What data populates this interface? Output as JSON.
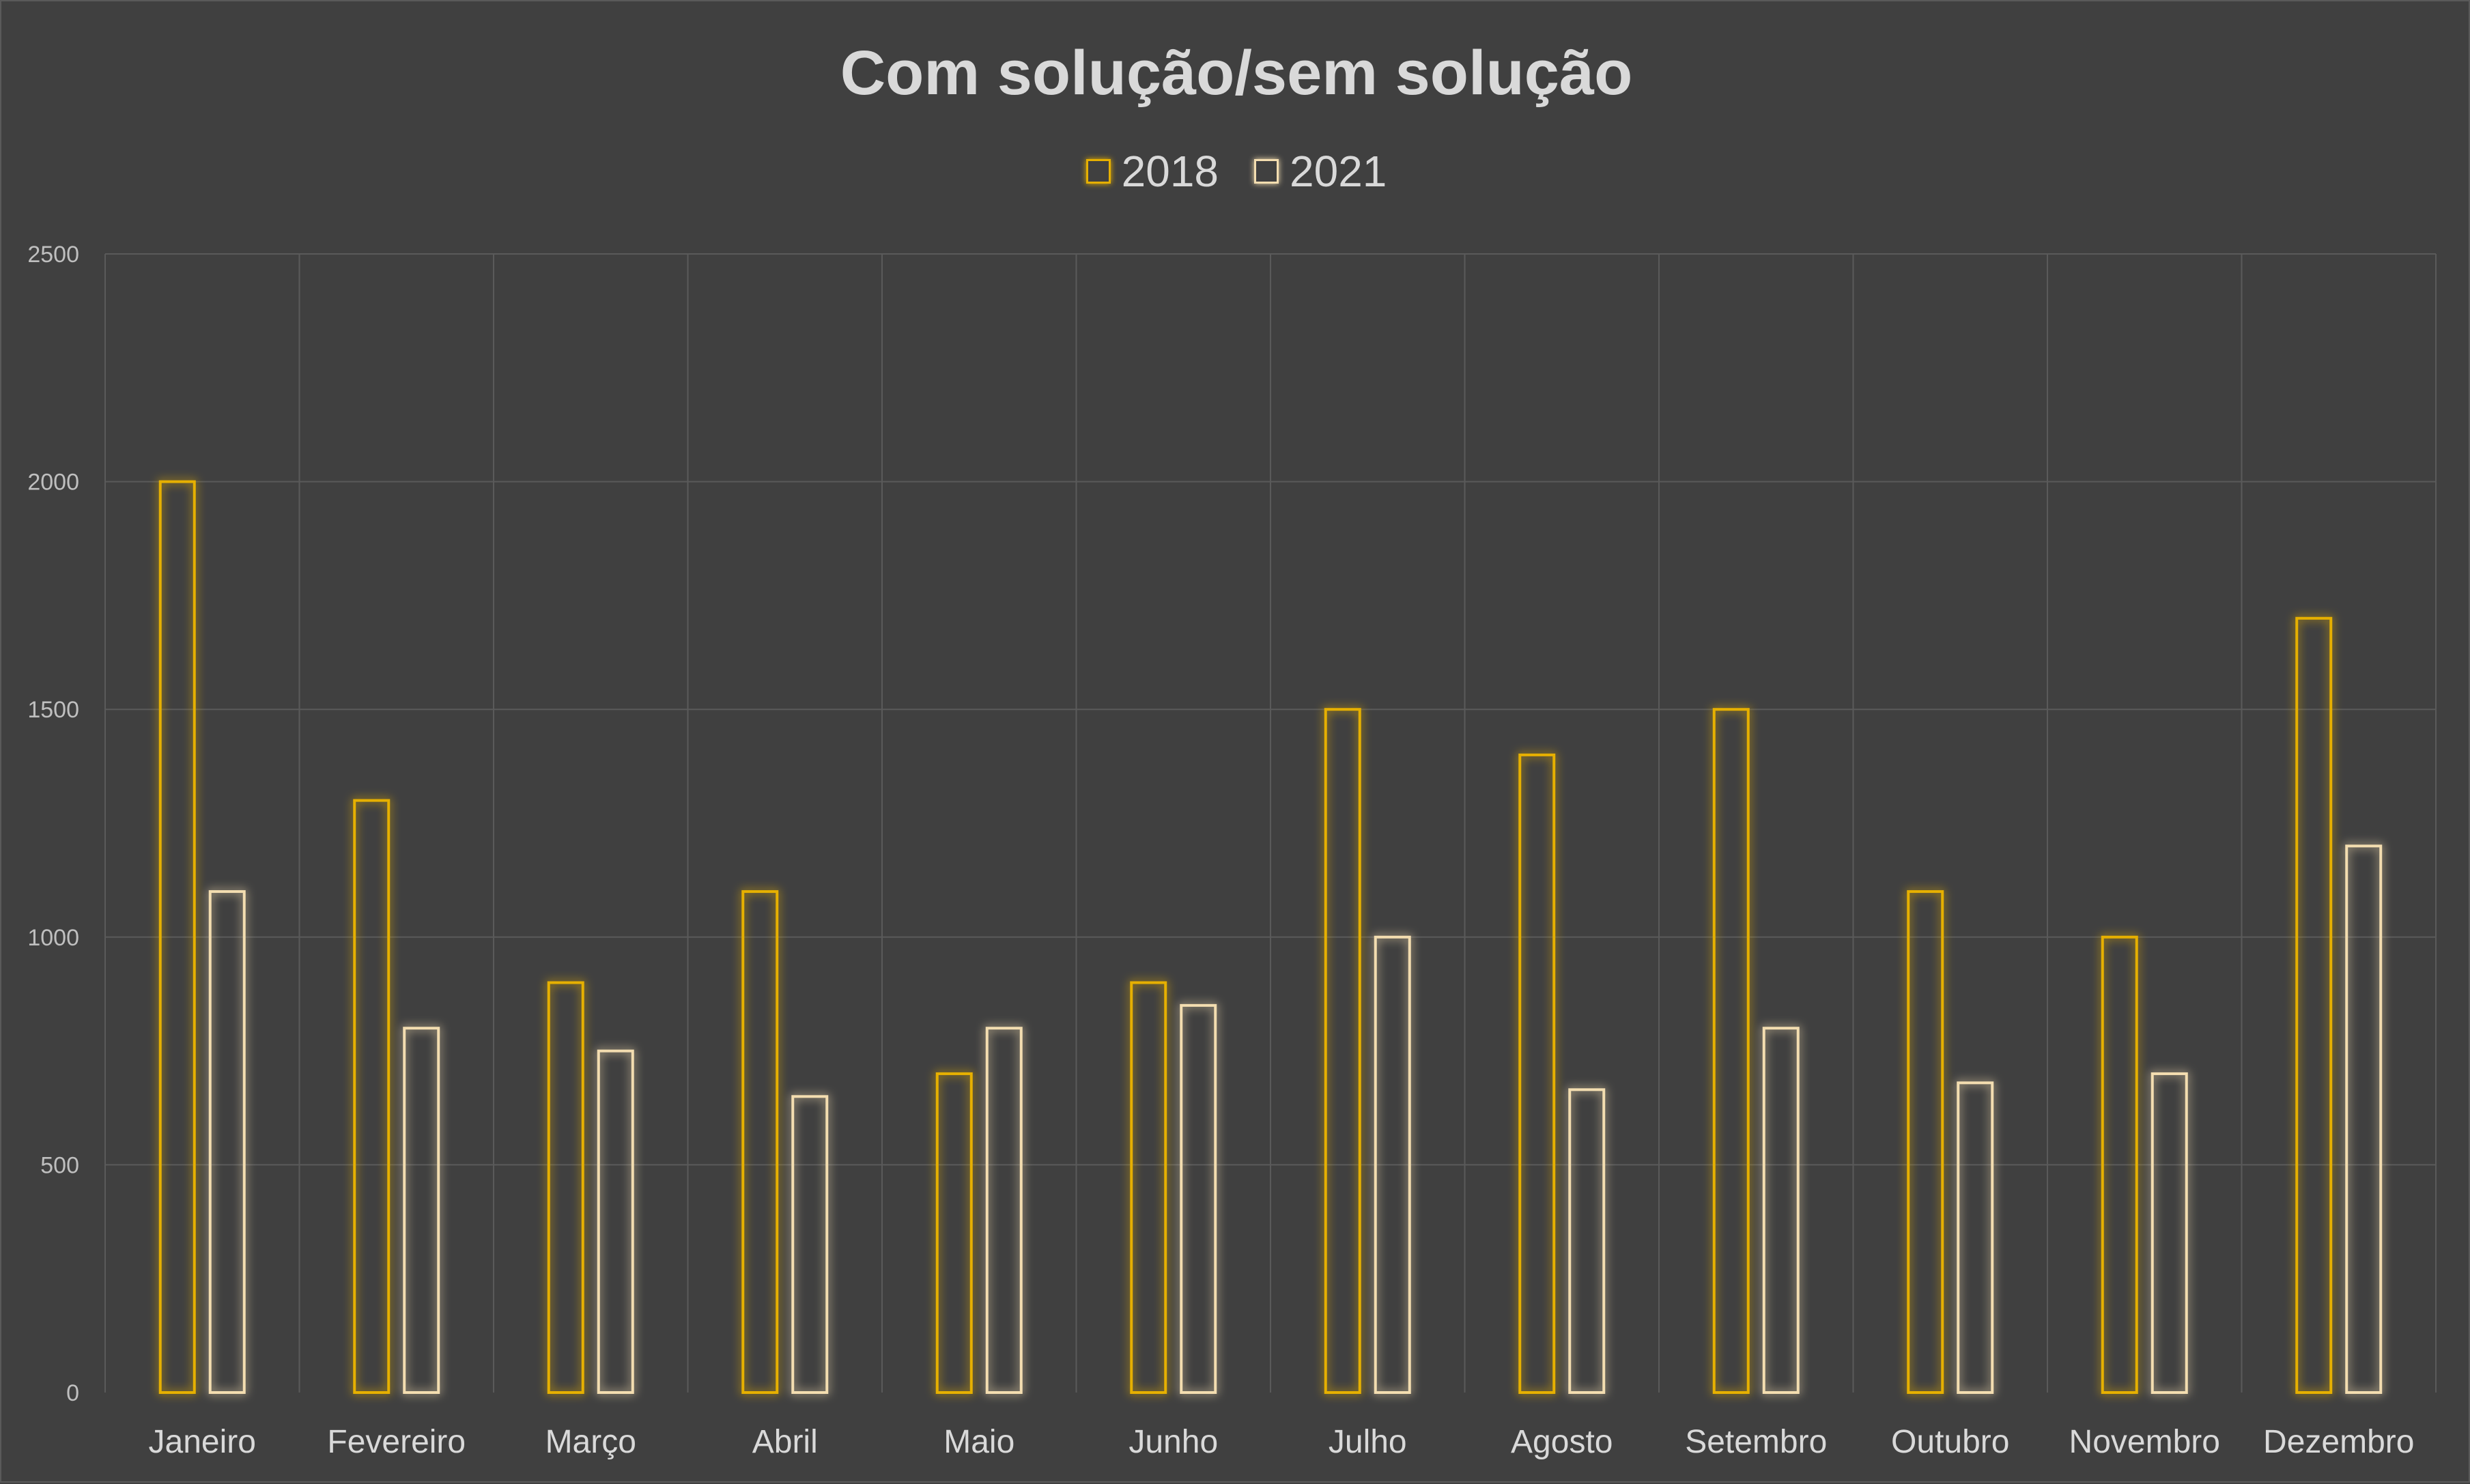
{
  "chart_data": {
    "type": "bar",
    "title": "Com solução/sem solução",
    "categories": [
      "Janeiro",
      "Fevereiro",
      "Março",
      "Abril",
      "Maio",
      "Junho",
      "Julho",
      "Agosto",
      "Setembro",
      "Outubro",
      "Novembro",
      "Dezembro"
    ],
    "series": [
      {
        "name": "2018",
        "color": "#e6b000",
        "values": [
          2000,
          1300,
          900,
          1100,
          700,
          900,
          1500,
          1400,
          1500,
          1100,
          1000,
          1700
        ]
      },
      {
        "name": "2021",
        "color": "#f3ddb0",
        "values": [
          1100,
          800,
          750,
          650,
          800,
          850,
          1000,
          665,
          800,
          680,
          700,
          1200
        ]
      }
    ],
    "xlabel": "",
    "ylabel": "",
    "ylim": [
      0,
      2500
    ],
    "yticks": [
      "0",
      "500",
      "1000",
      "1500",
      "2000",
      "2500"
    ],
    "grid": true,
    "legend_position": "top"
  }
}
